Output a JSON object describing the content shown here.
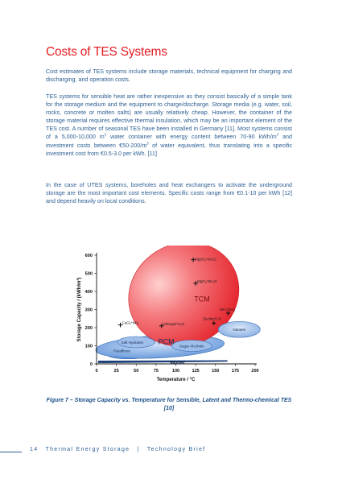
{
  "page": {
    "title": "Costs of TES Systems",
    "paragraph1": "Cost estimates of TES systems include storage materials, technical equipment for charging and discharging, and operation costs.",
    "paragraph2": {
      "part1": "TES systems for sensible heat are rather inexpensive as they consist basically of a simple tank for the storage medium and the equipment to charge/discharge. Storage media (e.g. water, soil, rocks, concrete or molten salts) are usually relatively cheap. However, the container of the storage material requires effective thermal insulation, which may be an important element of the TES cost. A number of seasonal TES have been installed in Germany [11]. Most systems consist of a 5,000-10,000 m",
      "sup1": "3",
      "part2": " water container with energy content between 70-90 kWh/m",
      "sup2": "3",
      "part3": " and investment costs between €50-200/m",
      "sup3": "3",
      "part4": " of water equivalent, thus translating into a specific investment cost from €0.5-3.0 per kWh. [11]"
    },
    "paragraph3": "In the case of UTES systems, boreholes and heat exchangers to activate the underground storage are the most important cost elements. Specific costs range from €0.1-10 per kWh [12] and depend heavily on local conditions.",
    "caption": "Figure 7 – Storage Capacity vs. Temperature for Sensible, Latent and Thermo-chemical TES [10]",
    "footer": {
      "page_number": "14",
      "title": "Thermal Energy Storage",
      "separator": "|",
      "subtitle": "Technology Brief"
    }
  },
  "chart_data": {
    "type": "scatter",
    "xlabel": "Temperature / °C",
    "ylabel": "Storage Capacity / (kWh/m³)",
    "xlim": [
      0,
      200
    ],
    "ylim": [
      0,
      600
    ],
    "xticks": [
      "0",
      "25",
      "50",
      "75",
      "100",
      "125",
      "150",
      "175",
      "200"
    ],
    "yticks": [
      "0",
      "100",
      "200",
      "300",
      "400",
      "500",
      "600"
    ],
    "regions": [
      {
        "label": "TCM",
        "color": "#e8232b"
      },
      {
        "label": "PCM",
        "color": "#6fa0de"
      },
      {
        "label": "Water",
        "color": "#6fa0de"
      }
    ],
    "material_labels": [
      {
        "label": "Salt Hydrates",
        "x": 45,
        "y": 120
      },
      {
        "label": "Paraffines",
        "x": 32,
        "y": 72
      },
      {
        "label": "Sugar Alcohols",
        "x": 120,
        "y": 100
      },
      {
        "label": "Nitrates",
        "x": 180,
        "y": 190
      }
    ],
    "points": [
      {
        "label": "MgSO₄*6H₂O",
        "x": 122,
        "y": 575
      },
      {
        "label": "MgCl₂*6H₂O",
        "x": 125,
        "y": 445
      },
      {
        "label": "CaCl₂*NH₃",
        "x": 30,
        "y": 215
      },
      {
        "label": "Silicagel*H₂O",
        "x": 82,
        "y": 210
      },
      {
        "label": "Zeolite*H₂O",
        "x": 148,
        "y": 225
      },
      {
        "label": "NiCl₂*NH₃",
        "x": 166,
        "y": 280
      }
    ]
  }
}
